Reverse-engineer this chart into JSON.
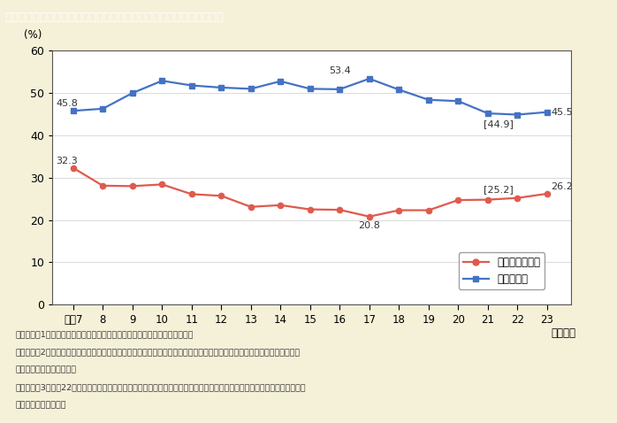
{
  "title": "第１－１－９図　地方公務員採用試験合格者に占める女性割合の推移",
  "title_bg_color": "#8B7355",
  "title_text_color": "#FFFFFF",
  "bg_color": "#F5F0D8",
  "plot_bg_color": "#FFFFFF",
  "ylabel": "(%)",
  "ylim": [
    0,
    60
  ],
  "yticks": [
    0,
    10,
    20,
    30,
    40,
    50,
    60
  ],
  "years": [
    7,
    8,
    9,
    10,
    11,
    12,
    13,
    14,
    15,
    16,
    17,
    18,
    19,
    20,
    21,
    22,
    23
  ],
  "prefecture_values": [
    32.3,
    28.1,
    28.0,
    28.4,
    26.1,
    25.7,
    23.1,
    23.5,
    22.5,
    22.4,
    20.8,
    22.3,
    22.3,
    24.7,
    24.8,
    25.2,
    26.2
  ],
  "city_values": [
    45.8,
    46.3,
    50.0,
    52.9,
    51.8,
    51.3,
    51.0,
    52.8,
    51.0,
    50.9,
    53.4,
    50.8,
    48.4,
    48.1,
    45.2,
    44.9,
    45.5
  ],
  "prefecture_color": "#E05A4E",
  "city_color": "#4472C4",
  "prefecture_label": "都道府県合格者",
  "city_label": "市区合格者",
  "x_tick_labels": [
    "平成7",
    "8",
    "9",
    "10",
    "11",
    "12",
    "13",
    "14",
    "15",
    "16",
    "17",
    "18",
    "19",
    "20",
    "21",
    "22",
    "23"
  ],
  "note_line1": "（備考）　1．総務省「地方公共団体の勤務条件等に関する調査」より作成。",
  "note_line2": "　　　　　2．女性合格者，男性合格者のほか，申込書に性別記入欄を設けていない試験があることから性別不明の合格者が",
  "note_line3": "　　　　　　　存在する。",
  "note_line4": "　　　　　3．平成22年度は，東日本大震災の影響により調査が困難となった２団体（岩手県の１市１町）を除いて集計して",
  "note_line5": "　　　　　　　いる。"
}
